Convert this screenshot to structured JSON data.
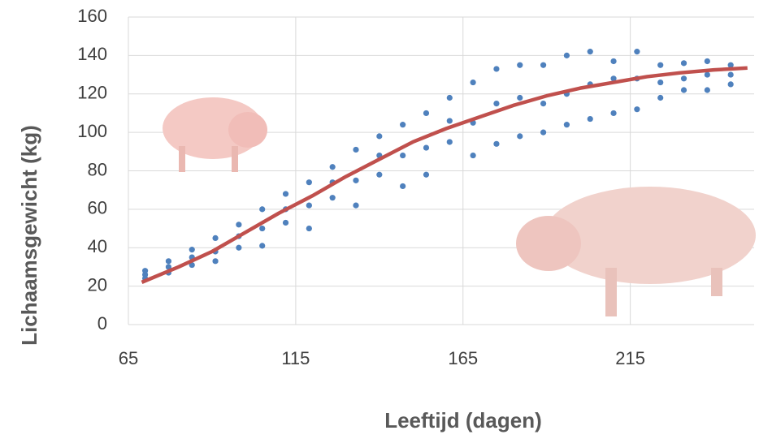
{
  "chart_data": {
    "type": "scatter",
    "xlabel": "Leeftijd (dagen)",
    "ylabel": "Lichaamsgewicht (kg)",
    "xlim": [
      65,
      252
    ],
    "ylim": [
      0,
      160
    ],
    "xticks": [
      65,
      115,
      165,
      215
    ],
    "yticks": [
      0,
      20,
      40,
      60,
      80,
      100,
      120,
      140,
      160
    ],
    "grid": true,
    "series": [
      {
        "type": "scatter",
        "color": "#4f81bd",
        "x": [
          70,
          70,
          70,
          77,
          77,
          77,
          84,
          84,
          84,
          91,
          91,
          91,
          98,
          98,
          98,
          105,
          105,
          105,
          112,
          112,
          112,
          119,
          119,
          119,
          126,
          126,
          126,
          133,
          133,
          133,
          140,
          140,
          140,
          147,
          147,
          147,
          154,
          154,
          154,
          161,
          161,
          161,
          168,
          168,
          168,
          175,
          175,
          175,
          182,
          182,
          182,
          189,
          189,
          189,
          196,
          196,
          196,
          203,
          203,
          203,
          210,
          210,
          210,
          217,
          217,
          217,
          224,
          224,
          224,
          231,
          231,
          231,
          238,
          238,
          238,
          245,
          245,
          245
        ],
        "values": [
          24,
          26,
          28,
          27,
          30,
          33,
          31,
          35,
          39,
          33,
          38,
          45,
          40,
          46,
          52,
          41,
          50,
          60,
          53,
          60,
          68,
          50,
          62,
          74,
          66,
          74,
          82,
          62,
          75,
          91,
          78,
          88,
          98,
          72,
          88,
          104,
          78,
          92,
          110,
          95,
          106,
          118,
          88,
          105,
          126,
          94,
          115,
          133,
          98,
          118,
          135,
          100,
          115,
          135,
          104,
          120,
          140,
          107,
          125,
          142,
          110,
          128,
          137,
          112,
          128,
          142,
          118,
          126,
          135,
          122,
          128,
          136,
          122,
          130,
          137,
          125,
          130,
          135
        ]
      },
      {
        "type": "line",
        "color": "#c0504d",
        "x": [
          69,
          80,
          90,
          100,
          110,
          120,
          130,
          140,
          150,
          160,
          170,
          180,
          190,
          200,
          210,
          220,
          230,
          240,
          250
        ],
        "values": [
          22,
          30,
          38,
          48,
          58,
          67,
          77,
          86,
          95,
          102,
          108,
          114,
          119,
          123,
          126,
          129,
          131,
          132.5,
          133.5
        ]
      }
    ]
  }
}
